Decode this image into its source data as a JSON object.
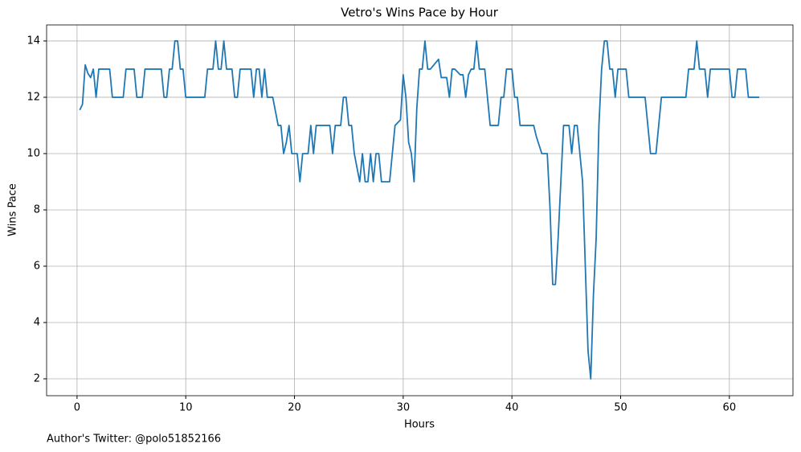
{
  "chart_data": {
    "type": "line",
    "title": "Vetro's Wins Pace by Hour",
    "x_label": "Hours",
    "y_label": "Wins Pace",
    "annotation": "Author's Twitter: @polo51852166",
    "color": "#1f77b4",
    "grid": true,
    "xlim": [
      -2.8,
      65.85
    ],
    "ylim": [
      1.4,
      14.57
    ],
    "xticks": [
      0,
      10,
      20,
      30,
      40,
      50,
      60
    ],
    "yticks": [
      2,
      4,
      6,
      8,
      10,
      12,
      14
    ],
    "x": [
      0.25,
      0.5,
      0.75,
      1,
      1.25,
      1.5,
      1.75,
      2,
      2.5,
      3,
      3.25,
      4,
      4.25,
      4.5,
      5.25,
      5.5,
      6,
      6.25,
      7.75,
      8,
      8.25,
      8.5,
      8.75,
      9,
      9.25,
      9.5,
      9.75,
      10,
      11.75,
      12,
      12.5,
      12.75,
      13,
      13.25,
      13.5,
      13.75,
      14.25,
      14.5,
      14.75,
      15,
      16,
      16.25,
      16.5,
      16.75,
      17,
      17.25,
      17.5,
      18,
      18.5,
      18.75,
      19,
      19.25,
      19.5,
      19.75,
      20.25,
      20.5,
      20.75,
      21.25,
      21.5,
      21.75,
      22,
      23.25,
      23.5,
      23.75,
      24.25,
      24.5,
      24.75,
      25,
      25.25,
      25.5,
      26,
      26.25,
      26.5,
      26.75,
      27,
      27.25,
      27.5,
      27.75,
      28,
      28.75,
      29,
      29.25,
      29.75,
      30,
      30.25,
      30.5,
      30.75,
      31,
      31.25,
      31.5,
      31.75,
      32,
      32.25,
      32.5,
      33.25,
      33.5,
      34,
      34.25,
      34.5,
      34.75,
      35.25,
      35.5,
      35.75,
      36,
      36.25,
      36.5,
      36.75,
      37,
      37.5,
      38,
      38.75,
      39,
      39.25,
      39.5,
      40,
      40.25,
      40.5,
      40.75,
      42,
      42.25,
      42.75,
      43.25,
      43.5,
      43.75,
      44,
      44.25,
      44.5,
      44.75,
      45.25,
      45.5,
      45.75,
      46,
      46.5,
      47,
      47.25,
      47.5,
      47.75,
      48,
      48.25,
      48.5,
      48.75,
      49,
      49.25,
      49.5,
      49.75,
      50.5,
      50.75,
      52.25,
      52.75,
      53.25,
      53.5,
      53.75,
      56,
      56.25,
      56.75,
      57,
      57.25,
      57.75,
      58,
      58.25,
      60,
      60.25,
      60.5,
      60.75,
      61.5,
      61.75,
      62.75
    ],
    "values": [
      11.55,
      11.75,
      13.15,
      12.85,
      12.7,
      13,
      12,
      13,
      13,
      13,
      12,
      12,
      12,
      13,
      13,
      12,
      12,
      13,
      13,
      12,
      12,
      13,
      13,
      14,
      14,
      13,
      13,
      12,
      12,
      13,
      13,
      14,
      13,
      13,
      14,
      13,
      13,
      12,
      12,
      13,
      13,
      12,
      13,
      13,
      12,
      13,
      12,
      12,
      11,
      11,
      10,
      10.4,
      11,
      10,
      10,
      9,
      10,
      10,
      11,
      10,
      11,
      11,
      10,
      11,
      11,
      12,
      12,
      11,
      11,
      10,
      9,
      10,
      9,
      9,
      10,
      9,
      10,
      10,
      9,
      9,
      10,
      11,
      11.2,
      12.8,
      12,
      10.4,
      10,
      9,
      11.6,
      13,
      13,
      14,
      13,
      13,
      13.35,
      12.7,
      12.7,
      12,
      13,
      13,
      12.8,
      12.8,
      12,
      12.8,
      13,
      13,
      14,
      13,
      13,
      11,
      11,
      12,
      12,
      13,
      13,
      12,
      12,
      11,
      11,
      10.6,
      10,
      10,
      8.1,
      5.35,
      5.35,
      7,
      9,
      11,
      11,
      10,
      11,
      11,
      9,
      3,
      2,
      5,
      7,
      11,
      13,
      14,
      14,
      13,
      13,
      12,
      13,
      13,
      12,
      12,
      10,
      10,
      11,
      12,
      12,
      13,
      13,
      14,
      13,
      13,
      12,
      13,
      13,
      12,
      12,
      13,
      13,
      12,
      12
    ]
  }
}
